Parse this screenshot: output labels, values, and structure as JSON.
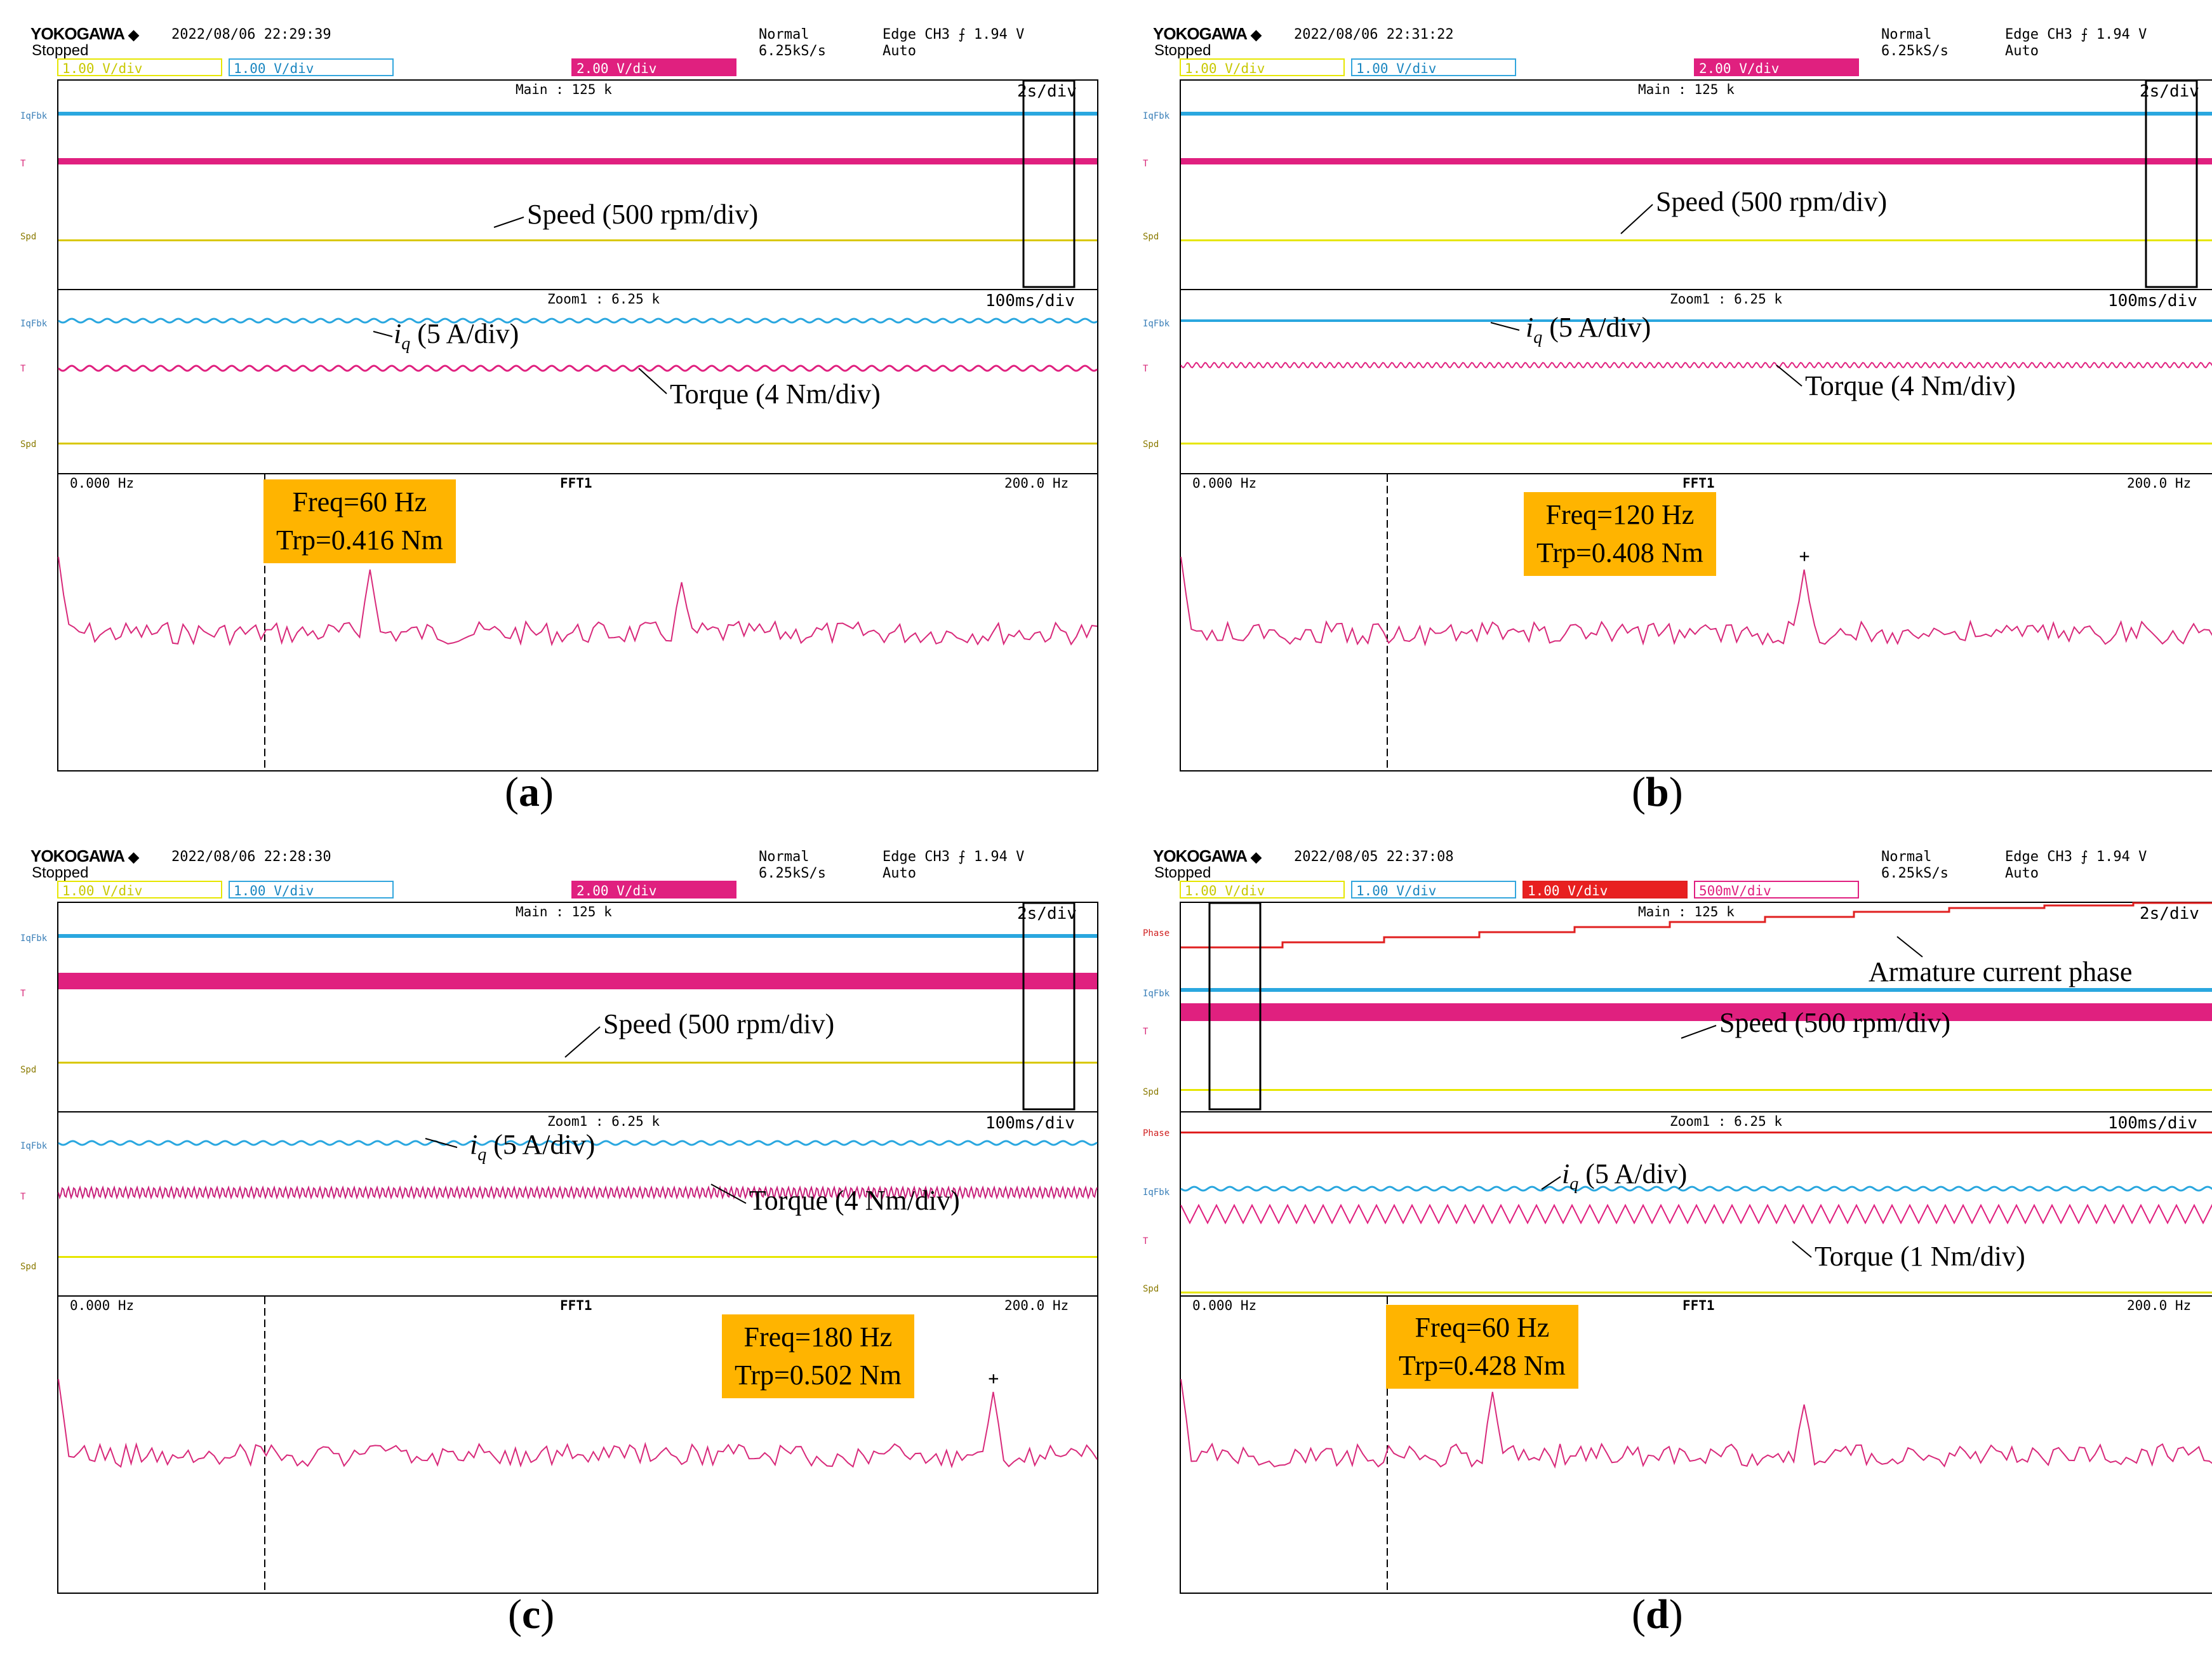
{
  "brand": "YOKOGAWA",
  "brand_mark": "◆",
  "status": "Stopped",
  "mode": "Normal",
  "rate": "6.25kS/s",
  "trigger": "Edge CH3 ⨍ 1.94 V",
  "trigger_mode": "Auto",
  "main_label": "Main : 125 k",
  "zoom_label": "Zoom1 : 6.25 k",
  "main_tdiv": "2s/div",
  "zoom_tdiv": "100ms/div",
  "fft_left": "0.000 Hz",
  "fft_right": "200.0 Hz",
  "fft_mark": "FFT1",
  "ch_labels": {
    "iq": "IqFbk",
    "t": "T",
    "spd": "Spd",
    "phase": "Phase"
  },
  "ch1": "1.00 V/div",
  "ch2": "1.00 V/div",
  "ch3": "2.00 V/div",
  "ch3d": "1.00 V/div",
  "ch4d": "500mV/div",
  "speed_annot": "Speed (500 rpm/div)",
  "iq_annot_sym": "i",
  "iq_annot_sub": "q",
  "iq_annot_rest": " (5 A/div)",
  "torque4": "Torque (4 Nm/div)",
  "torque1": "Torque (1 Nm/div)",
  "phase_annot": "Armature current phase",
  "panels": [
    {
      "id": "a",
      "caption": "a",
      "timestamp": "2022/08/06 22:29:39",
      "freq": "Freq=60 Hz",
      "trp": "Trp=0.416 Nm"
    },
    {
      "id": "b",
      "caption": "b",
      "timestamp": "2022/08/06 22:31:22",
      "freq": "Freq=120 Hz",
      "trp": "Trp=0.408 Nm"
    },
    {
      "id": "c",
      "caption": "c",
      "timestamp": "2022/08/06 22:28:30",
      "freq": "Freq=180 Hz",
      "trp": "Trp=0.502 Nm"
    },
    {
      "id": "d",
      "caption": "d",
      "timestamp": "2022/08/05 22:37:08",
      "freq": "Freq=60 Hz",
      "trp": "Trp=0.428 Nm"
    }
  ],
  "chart_data": [
    {
      "type": "line",
      "title": "(a)",
      "x_range_hz": [
        0,
        200
      ],
      "peak_hz": 60,
      "peak_nm": 0.416,
      "secondary_peak_hz": 120
    },
    {
      "type": "line",
      "title": "(b)",
      "x_range_hz": [
        0,
        200
      ],
      "peak_hz": 120,
      "peak_nm": 0.408
    },
    {
      "type": "line",
      "title": "(c)",
      "x_range_hz": [
        0,
        200
      ],
      "peak_hz": 180,
      "peak_nm": 0.502
    },
    {
      "type": "line",
      "title": "(d)",
      "x_range_hz": [
        0,
        200
      ],
      "peak_hz": 60,
      "peak_nm": 0.428,
      "secondary_peak_hz": 120
    }
  ]
}
